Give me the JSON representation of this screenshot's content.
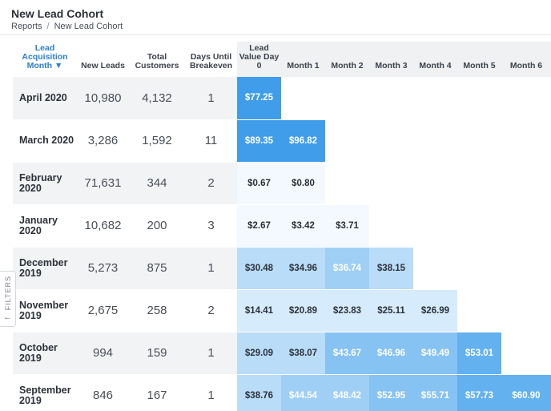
{
  "header": {
    "title": "New Lead Cohort",
    "breadcrumb": [
      "Reports",
      "New Lead Cohort"
    ]
  },
  "filters_label": "FILTERS",
  "table": {
    "columns": [
      "Lead Acquisition Month ▼",
      "New Leads",
      "Total Customers",
      "Days Until Breakeven",
      "Lead Value Day 0",
      "Month 1",
      "Month 2",
      "Month 3",
      "Month 4",
      "Month 5",
      "Month 6"
    ],
    "rows": [
      {
        "month": "April 2020",
        "new_leads": "10,980",
        "total_customers": "4,132",
        "days_until_breakeven": "1",
        "values": [
          "$77.25"
        ]
      },
      {
        "month": "March 2020",
        "new_leads": "3,286",
        "total_customers": "1,592",
        "days_until_breakeven": "11",
        "values": [
          "$89.35",
          "$96.82"
        ]
      },
      {
        "month": "February 2020",
        "new_leads": "71,631",
        "total_customers": "344",
        "days_until_breakeven": "2",
        "values": [
          "$0.67",
          "$0.80"
        ]
      },
      {
        "month": "January 2020",
        "new_leads": "10,682",
        "total_customers": "200",
        "days_until_breakeven": "3",
        "values": [
          "$2.67",
          "$3.42",
          "$3.71"
        ]
      },
      {
        "month": "December 2019",
        "new_leads": "5,273",
        "total_customers": "875",
        "days_until_breakeven": "1",
        "values": [
          "$30.48",
          "$34.96",
          "$36.74",
          "$38.15"
        ]
      },
      {
        "month": "November 2019",
        "new_leads": "2,675",
        "total_customers": "258",
        "days_until_breakeven": "2",
        "values": [
          "$14.41",
          "$20.89",
          "$23.83",
          "$25.11",
          "$26.99"
        ]
      },
      {
        "month": "October 2019",
        "new_leads": "994",
        "total_customers": "159",
        "days_until_breakeven": "1",
        "values": [
          "$29.09",
          "$38.07",
          "$43.67",
          "$46.96",
          "$49.49",
          "$53.01"
        ]
      },
      {
        "month": "September 2019",
        "new_leads": "846",
        "total_customers": "167",
        "days_until_breakeven": "1",
        "values": [
          "$38.76",
          "$44.54",
          "$48.42",
          "$52.95",
          "$55.71",
          "$57.73",
          "$60.90"
        ]
      }
    ]
  }
}
